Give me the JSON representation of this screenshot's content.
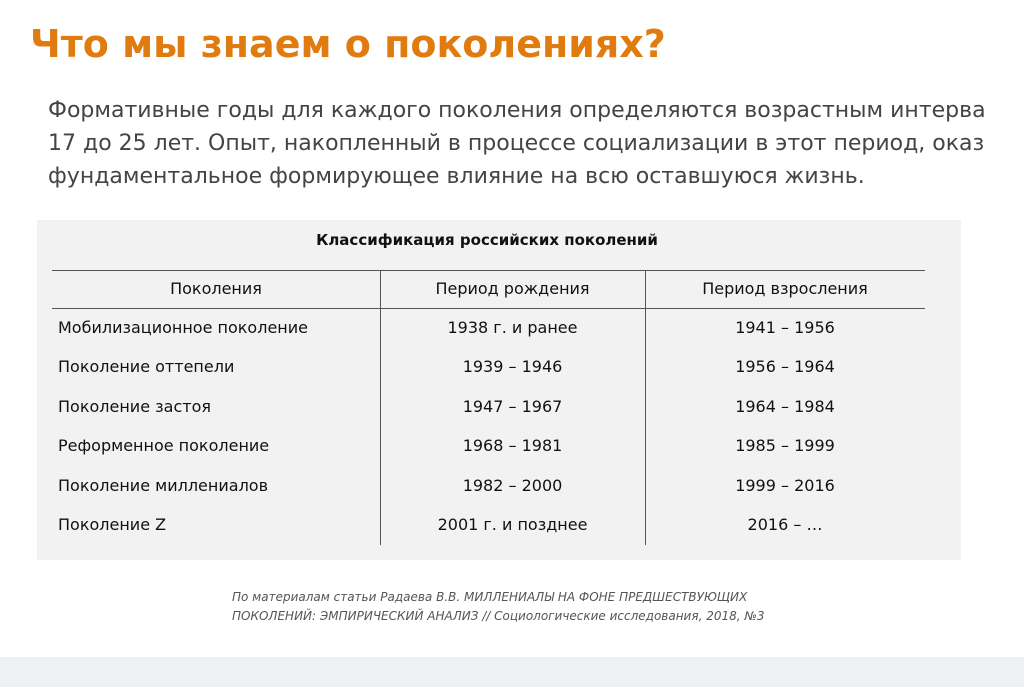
{
  "header": {
    "title": "Что мы знаем о поколениях?"
  },
  "intro": {
    "lines": [
      "Формативные годы для каждого поколения определяются возрастным интерва",
      "17 до 25 лет. Опыт, накопленный в процессе социализации в этот период, оказ",
      "фундаментальное формирующее влияние на всю оставшуюся жизнь."
    ]
  },
  "table": {
    "title": "Классификация российских поколений",
    "columns": [
      "Поколения",
      "Период рождения",
      "Период взросления"
    ],
    "rows": [
      [
        "Мобилизационное поколение",
        "1938 г. и ранее",
        "1941 – 1956"
      ],
      [
        "Поколение оттепели",
        "1939 – 1946",
        "1956 – 1964"
      ],
      [
        "Поколение застоя",
        "1947 – 1967",
        "1964 – 1984"
      ],
      [
        "Реформенное поколение",
        "1968 – 1981",
        "1985 – 1999"
      ],
      [
        "Поколение миллениалов",
        "1982 – 2000",
        "1999 – 2016"
      ],
      [
        "Поколение Z",
        "2001 г. и позднее",
        "2016 – …"
      ]
    ]
  },
  "source": {
    "lines": [
      "По материалам статьи Радаева В.В. МИЛЛЕНИАЛЫ НА ФОНЕ ПРЕДШЕСТВУЮЩИХ",
      "ПОКОЛЕНИЙ: ЭМПИРИЧЕСКИЙ АНАЛИЗ // Социологические исследования, 2018, №3"
    ]
  }
}
